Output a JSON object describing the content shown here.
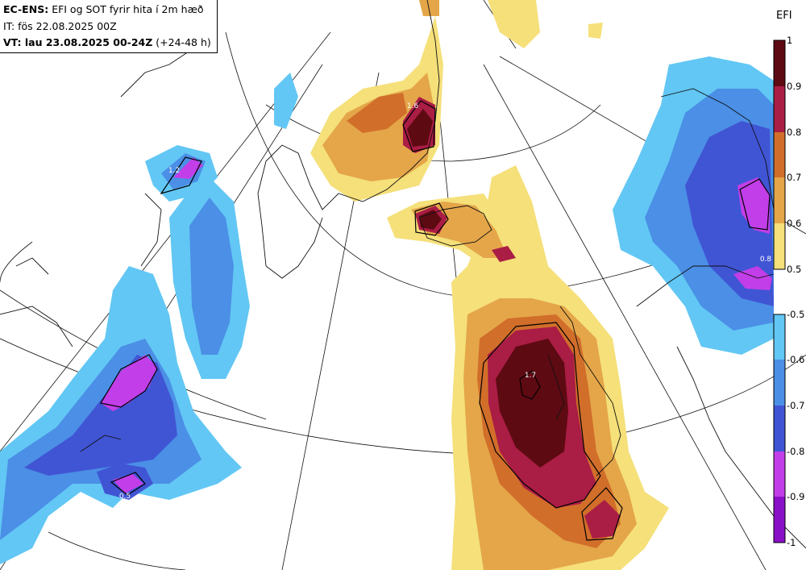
{
  "header": {
    "line1_bold": "EC-ENS:",
    "line1_rest": "EFI og SOT fyrir hita í 2m hæð",
    "line2": "IT: fös 22.08.2025 00Z",
    "line3_bold": "VT: lau 23.08.2025 00-24Z",
    "line3_rest": "(+24-48 h)"
  },
  "colorbar": {
    "title": "EFI",
    "positive": [
      {
        "label": "1",
        "color": "#5e0a12"
      },
      {
        "label": "0.9",
        "color": "#aa1d45"
      },
      {
        "label": "0.8",
        "color": "#d16e2a"
      },
      {
        "label": "0.7",
        "color": "#e4a649"
      },
      {
        "label": "0.6",
        "color": "#f5e07a"
      },
      {
        "label": "0.5",
        "color": null
      }
    ],
    "negative": [
      {
        "label": "-0.5",
        "color": "#62c7f4"
      },
      {
        "label": "-0.6",
        "color": "#4b8fe6"
      },
      {
        "label": "-0.7",
        "color": "#4055d4"
      },
      {
        "label": "-0.8",
        "color": "#c23ee8"
      },
      {
        "label": "-0.9",
        "color": "#8a10c8"
      },
      {
        "label": "-1",
        "color": null
      }
    ]
  },
  "map_labels": {
    "sot_1": "1.7",
    "sot_2": "1.6",
    "sot_3": "0.5",
    "sot_4": "1.2",
    "sot_5": "0.8"
  }
}
